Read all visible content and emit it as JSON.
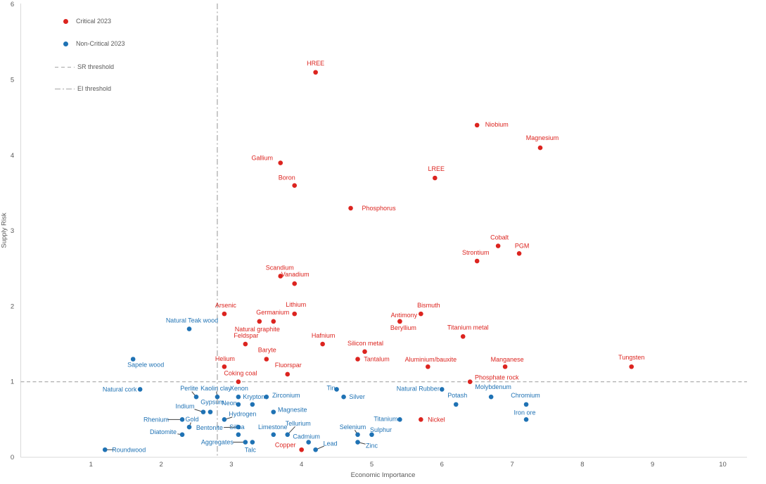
{
  "chart_data": {
    "type": "scatter",
    "xlabel": "Economic Importance",
    "ylabel": "Supply Risk",
    "x_ticks": [
      1,
      2,
      3,
      4,
      5,
      6,
      7,
      8,
      9,
      10
    ],
    "y_ticks": [
      0,
      1,
      2,
      3,
      4,
      5,
      6
    ],
    "xlim": [
      0,
      10.35
    ],
    "ylim": [
      0,
      6
    ],
    "grid": false,
    "legend_position": "top-left-inside",
    "thresholds": {
      "sr_threshold": 1.0,
      "ei_threshold": 2.8
    },
    "series": [
      {
        "name": "Critical 2023",
        "color": "#dc241f",
        "points": [
          {
            "label": "HREE",
            "ei": 4.2,
            "sr": 5.1,
            "dx": 0,
            "dy": -13,
            "leader": false
          },
          {
            "label": "Niobium",
            "ei": 6.5,
            "sr": 4.4,
            "dx": 28,
            "dy": -1,
            "leader": false
          },
          {
            "label": "Magnesium",
            "ei": 7.4,
            "sr": 4.1,
            "dx": 3,
            "dy": -14,
            "leader": false
          },
          {
            "label": "Gallium",
            "ei": 3.7,
            "sr": 3.9,
            "dx": -26,
            "dy": -7,
            "leader": false
          },
          {
            "label": "Boron",
            "ei": 3.9,
            "sr": 3.6,
            "dx": -11,
            "dy": -11,
            "leader": false
          },
          {
            "label": "LREE",
            "ei": 5.9,
            "sr": 3.7,
            "dx": 2,
            "dy": -13,
            "leader": false
          },
          {
            "label": "Phosphorus",
            "ei": 4.7,
            "sr": 3.3,
            "dx": 40,
            "dy": 0,
            "leader": false
          },
          {
            "label": "Cobalt",
            "ei": 6.8,
            "sr": 2.8,
            "dx": 2,
            "dy": -12,
            "leader": false
          },
          {
            "label": "PGM",
            "ei": 7.1,
            "sr": 2.7,
            "dx": 4,
            "dy": -11,
            "leader": false
          },
          {
            "label": "Strontium",
            "ei": 6.5,
            "sr": 2.6,
            "dx": -2,
            "dy": -12,
            "leader": false
          },
          {
            "label": "Scandium",
            "ei": 3.7,
            "sr": 2.4,
            "dx": -1,
            "dy": -12,
            "leader": false
          },
          {
            "label": "Vanadium",
            "ei": 3.9,
            "sr": 2.3,
            "dx": 1,
            "dy": -13,
            "leader": false
          },
          {
            "label": "Lithium",
            "ei": 3.9,
            "sr": 1.9,
            "dx": 2,
            "dy": -13,
            "leader": false
          },
          {
            "label": "Arsenic",
            "ei": 2.9,
            "sr": 1.9,
            "dx": 2,
            "dy": -12,
            "leader": false
          },
          {
            "label": "Germanium",
            "ei": 3.6,
            "sr": 1.8,
            "dx": -1,
            "dy": -13,
            "leader": false
          },
          {
            "label": "Natural graphite",
            "ei": 3.4,
            "sr": 1.8,
            "dx": -3,
            "dy": 11,
            "leader": false
          },
          {
            "label": "Antimony",
            "ei": 5.4,
            "sr": 1.8,
            "dx": 6,
            "dy": -9,
            "leader": false
          },
          {
            "label": "Beryllium",
            "ei": 5.4,
            "sr": 1.8,
            "dx": 5,
            "dy": 9,
            "leader": false
          },
          {
            "label": "Bismuth",
            "ei": 5.7,
            "sr": 1.9,
            "dx": 11,
            "dy": -12,
            "leader": false
          },
          {
            "label": "Titanium metal",
            "ei": 6.3,
            "sr": 1.6,
            "dx": 7,
            "dy": -13,
            "leader": false
          },
          {
            "label": "Silicon metal",
            "ei": 4.9,
            "sr": 1.4,
            "dx": 1,
            "dy": -12,
            "leader": false
          },
          {
            "label": "Tantalum",
            "ei": 4.8,
            "sr": 1.3,
            "dx": 27,
            "dy": 0,
            "leader": false
          },
          {
            "label": "Hafnium",
            "ei": 4.3,
            "sr": 1.5,
            "dx": 1,
            "dy": -12,
            "leader": false
          },
          {
            "label": "Feldspar",
            "ei": 3.2,
            "sr": 1.5,
            "dx": 1,
            "dy": -12,
            "leader": false
          },
          {
            "label": "Baryte",
            "ei": 3.5,
            "sr": 1.3,
            "dx": 1,
            "dy": -13,
            "leader": false
          },
          {
            "label": "Fluorspar",
            "ei": 3.8,
            "sr": 1.1,
            "dx": 1,
            "dy": -13,
            "leader": false
          },
          {
            "label": "Helium",
            "ei": 2.9,
            "sr": 1.2,
            "dx": 1,
            "dy": -11,
            "leader": false
          },
          {
            "label": "Coking coal",
            "ei": 3.1,
            "sr": 1.0,
            "dx": 3,
            "dy": -12,
            "leader": false
          },
          {
            "label": "Aluminium/bauxite",
            "ei": 5.8,
            "sr": 1.2,
            "dx": 4,
            "dy": -10,
            "leader": false
          },
          {
            "label": "Manganese",
            "ei": 6.9,
            "sr": 1.2,
            "dx": 3,
            "dy": -10,
            "leader": false
          },
          {
            "label": "Phosphate rock",
            "ei": 6.4,
            "sr": 1.0,
            "dx": 38,
            "dy": -6,
            "leader": false
          },
          {
            "label": "Tungsten",
            "ei": 8.7,
            "sr": 1.2,
            "dx": 0,
            "dy": -13,
            "leader": false
          },
          {
            "label": "Copper",
            "ei": 4.0,
            "sr": 0.1,
            "dx": -23,
            "dy": -7,
            "leader": false
          },
          {
            "label": "Nickel",
            "ei": 5.7,
            "sr": 0.5,
            "dx": 22,
            "dy": 0,
            "leader": false
          }
        ]
      },
      {
        "name": "Non-Critical 2023",
        "color": "#1f72b4",
        "points": [
          {
            "label": "Natural Teak wood",
            "ei": 2.4,
            "sr": 1.7,
            "dx": 4,
            "dy": -12,
            "leader": false
          },
          {
            "label": "Sapele wood",
            "ei": 1.6,
            "sr": 1.3,
            "dx": 18,
            "dy": 8,
            "leader": false
          },
          {
            "label": "Natural cork",
            "ei": 1.7,
            "sr": 0.9,
            "dx": -29,
            "dy": 0,
            "leader": true
          },
          {
            "label": "Roundwood",
            "ei": 1.2,
            "sr": 0.1,
            "dx": 34,
            "dy": 0,
            "leader": true
          },
          {
            "label": "Perlite",
            "ei": 2.5,
            "sr": 0.8,
            "dx": -10,
            "dy": -12,
            "leader": true
          },
          {
            "label": "Kaolin clay",
            "ei": 2.8,
            "sr": 0.8,
            "dx": -2,
            "dy": -12,
            "leader": true
          },
          {
            "label": "Xenon",
            "ei": 3.1,
            "sr": 0.8,
            "dx": 1,
            "dy": -12,
            "leader": false
          },
          {
            "label": "Krypton",
            "ei": 3.3,
            "sr": 0.7,
            "dx": 2,
            "dy": -11,
            "leader": false
          },
          {
            "label": "Neon",
            "ei": 3.1,
            "sr": 0.7,
            "dx": -13,
            "dy": -2,
            "leader": false
          },
          {
            "label": "Zirconium",
            "ei": 3.5,
            "sr": 0.8,
            "dx": 28,
            "dy": -2,
            "leader": false
          },
          {
            "label": "Silver",
            "ei": 4.6,
            "sr": 0.8,
            "dx": 19,
            "dy": 0,
            "leader": false
          },
          {
            "label": "Tin",
            "ei": 4.5,
            "sr": 0.9,
            "dx": -8,
            "dy": -2,
            "leader": false
          },
          {
            "label": "Natural Rubber",
            "ei": 6.0,
            "sr": 0.9,
            "dx": -34,
            "dy": -1,
            "leader": true
          },
          {
            "label": "Molybdenum",
            "ei": 6.7,
            "sr": 0.8,
            "dx": 3,
            "dy": -14,
            "leader": false
          },
          {
            "label": "Potash",
            "ei": 6.2,
            "sr": 0.7,
            "dx": 2,
            "dy": -13,
            "leader": false
          },
          {
            "label": "Chromium",
            "ei": 7.2,
            "sr": 0.7,
            "dx": -1,
            "dy": -13,
            "leader": false
          },
          {
            "label": "Iron ore",
            "ei": 7.2,
            "sr": 0.5,
            "dx": -2,
            "dy": -10,
            "leader": false
          },
          {
            "label": "Gypsum",
            "ei": 2.7,
            "sr": 0.6,
            "dx": 3,
            "dy": -14,
            "leader": false
          },
          {
            "label": "Indium",
            "ei": 2.6,
            "sr": 0.6,
            "dx": -26,
            "dy": -8,
            "leader": true
          },
          {
            "label": "Rhenium",
            "ei": 2.3,
            "sr": 0.5,
            "dx": -37,
            "dy": 0,
            "leader": true
          },
          {
            "label": "Gold",
            "ei": 2.4,
            "sr": 0.4,
            "dx": 4,
            "dy": -11,
            "leader": true
          },
          {
            "label": "Diatomite",
            "ei": 2.3,
            "sr": 0.3,
            "dx": -27,
            "dy": -4,
            "leader": true
          },
          {
            "label": "Bentonite",
            "ei": 3.1,
            "sr": 0.4,
            "dx": -41,
            "dy": 1,
            "leader": true
          },
          {
            "label": "Silica",
            "ei": 3.1,
            "sr": 0.3,
            "dx": -2,
            "dy": -11,
            "leader": false
          },
          {
            "label": "Hydrogen",
            "ei": 2.9,
            "sr": 0.5,
            "dx": 26,
            "dy": -8,
            "leader": true
          },
          {
            "label": "Magnesite",
            "ei": 3.6,
            "sr": 0.6,
            "dx": 27,
            "dy": -3,
            "leader": false
          },
          {
            "label": "Limestone",
            "ei": 3.6,
            "sr": 0.3,
            "dx": -1,
            "dy": -11,
            "leader": false
          },
          {
            "label": "Tellurium",
            "ei": 3.8,
            "sr": 0.3,
            "dx": 15,
            "dy": -16,
            "leader": true
          },
          {
            "label": "Cadmium",
            "ei": 4.1,
            "sr": 0.2,
            "dx": -3,
            "dy": -8,
            "leader": false
          },
          {
            "label": "Lead",
            "ei": 4.2,
            "sr": 0.1,
            "dx": 21,
            "dy": -9,
            "leader": true
          },
          {
            "label": "Zinc",
            "ei": 4.8,
            "sr": 0.2,
            "dx": 20,
            "dy": 5,
            "leader": true
          },
          {
            "label": "Selenium",
            "ei": 4.8,
            "sr": 0.3,
            "dx": -7,
            "dy": -11,
            "leader": true
          },
          {
            "label": "Sulphur",
            "ei": 5.0,
            "sr": 0.3,
            "dx": 13,
            "dy": -7,
            "leader": false
          },
          {
            "label": "Titanium",
            "ei": 5.4,
            "sr": 0.5,
            "dx": -20,
            "dy": -1,
            "leader": true
          },
          {
            "label": "Aggregates",
            "ei": 3.2,
            "sr": 0.2,
            "dx": -40,
            "dy": 0,
            "leader": true
          },
          {
            "label": "Talc",
            "ei": 3.3,
            "sr": 0.2,
            "dx": -3,
            "dy": 11,
            "leader": false
          }
        ]
      }
    ]
  },
  "legend": {
    "critical_label": "Critical 2023",
    "non_critical_label": "Non-Critical 2023",
    "sr_threshold_label": "SR threshold",
    "ei_threshold_label": "EI threshold"
  },
  "axes": {
    "x_title": "Economic Importance",
    "y_title": "Supply Risk"
  },
  "colors": {
    "critical": "#dc241f",
    "non_critical": "#1f72b4",
    "threshold_line": "#a6a6a6",
    "axis_line": "#d9d9d9",
    "axis_text": "#595959",
    "leader_line": "#404040"
  }
}
